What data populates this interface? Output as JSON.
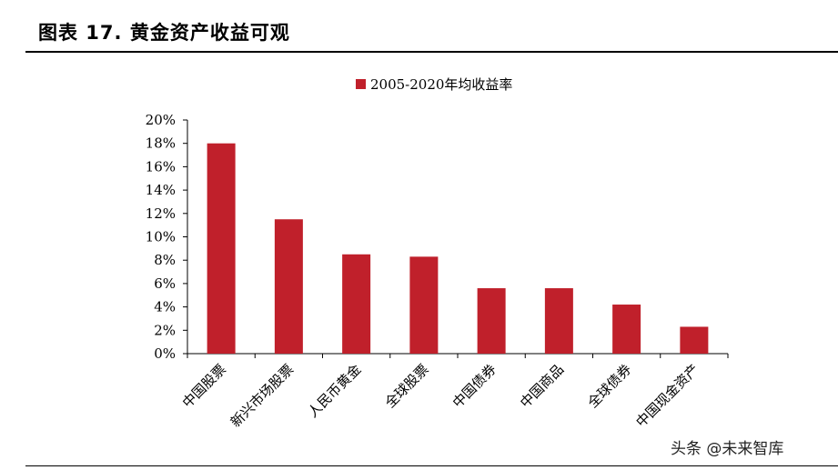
{
  "header": {
    "title": "图表 17. 黄金资产收益可观"
  },
  "watermark": "头条 @未来智库",
  "chart_data": {
    "type": "bar",
    "title": "",
    "xlabel": "",
    "ylabel": "",
    "categories": [
      "中国股票",
      "新兴市场股票",
      "人民币黄金",
      "全球股票",
      "中国债券",
      "中国商品",
      "全球债券",
      "中国现金资产"
    ],
    "series": [
      {
        "name": "2005-2020年均收益率",
        "values": [
          18.0,
          11.5,
          8.5,
          8.3,
          5.6,
          5.6,
          4.2,
          2.3
        ],
        "color": "#c0202b"
      }
    ],
    "yticks": [
      "0%",
      "2%",
      "4%",
      "6%",
      "8%",
      "10%",
      "12%",
      "14%",
      "16%",
      "18%",
      "20%"
    ],
    "ylim": [
      0,
      20
    ],
    "grid": false,
    "legend_position": "top-center"
  }
}
